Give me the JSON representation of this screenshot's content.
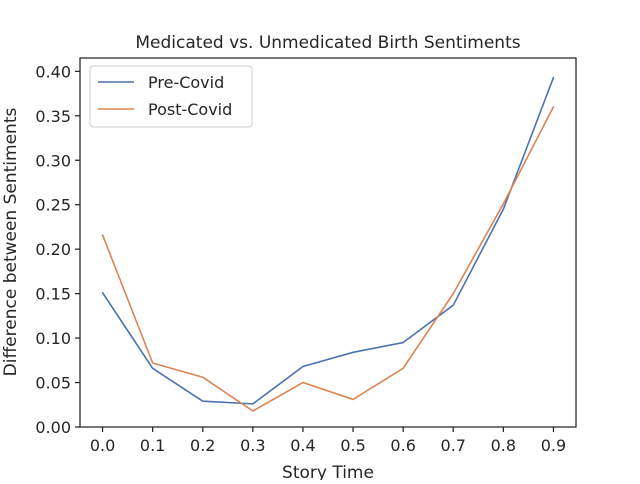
{
  "chart_data": {
    "type": "line",
    "title": "Medicated vs. Unmedicated Birth Sentiments",
    "xlabel": "Story Time",
    "ylabel": "Difference between Sentiments",
    "x": [
      0.0,
      0.1,
      0.2,
      0.3,
      0.4,
      0.5,
      0.6,
      0.7,
      0.8,
      0.9
    ],
    "xlim": [
      -0.045,
      0.945
    ],
    "ylim": [
      0.0,
      0.415
    ],
    "x_ticks": [
      "0.0",
      "0.1",
      "0.2",
      "0.3",
      "0.4",
      "0.5",
      "0.6",
      "0.7",
      "0.8",
      "0.9"
    ],
    "x_tick_values": [
      0.0,
      0.1,
      0.2,
      0.3,
      0.4,
      0.5,
      0.6,
      0.7,
      0.8,
      0.9
    ],
    "y_ticks": [
      "0.00",
      "0.05",
      "0.10",
      "0.15",
      "0.20",
      "0.25",
      "0.30",
      "0.35",
      "0.40"
    ],
    "y_tick_values": [
      0.0,
      0.05,
      0.1,
      0.15,
      0.2,
      0.25,
      0.3,
      0.35,
      0.4
    ],
    "grid": false,
    "legend_position": "top-left",
    "series": [
      {
        "name": "Pre-Covid",
        "color": "#4c72b0",
        "values": [
          0.151,
          0.066,
          0.029,
          0.026,
          0.068,
          0.084,
          0.095,
          0.137,
          0.245,
          0.393
        ]
      },
      {
        "name": "Post-Covid",
        "color": "#dd8452",
        "values": [
          0.216,
          0.072,
          0.056,
          0.018,
          0.05,
          0.031,
          0.066,
          0.15,
          0.251,
          0.36
        ]
      }
    ]
  }
}
